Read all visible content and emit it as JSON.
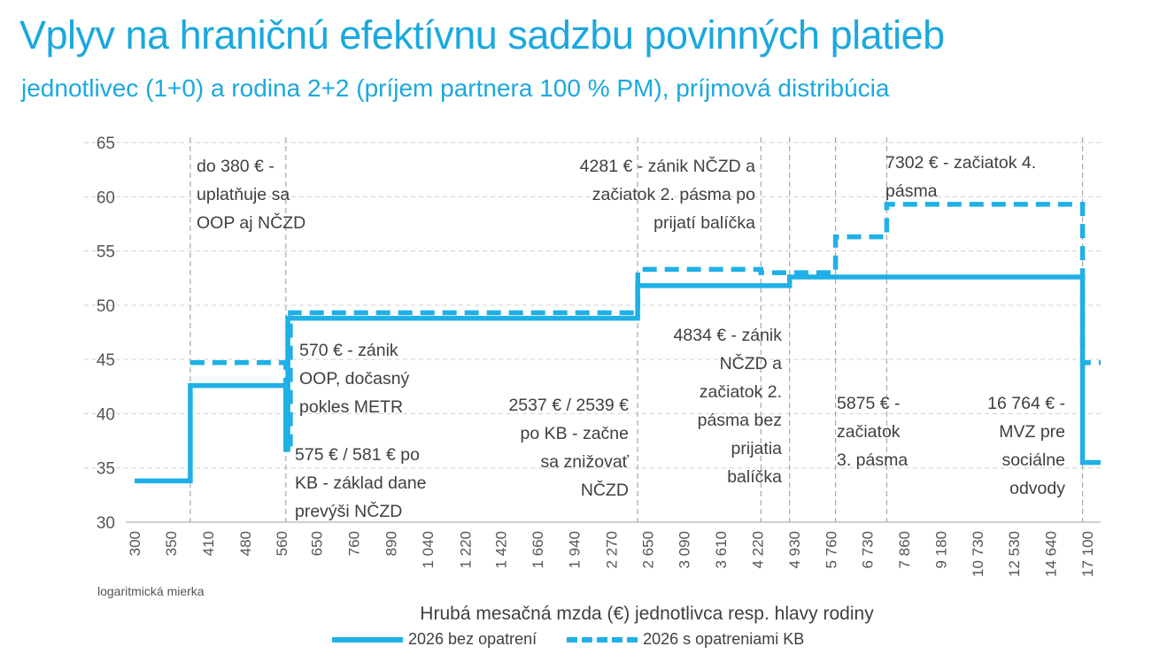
{
  "title": "Vplyv na hraničnú efektívnu sadzbu povinných platieb",
  "subtitle": "jednotlivec (1+0) a rodina 2+2 (príjem partnera 100 % PM), príjmová distribúcia",
  "note": "logaritmická mierka",
  "colors": {
    "series": "#1eb0e6",
    "title": "#1ba8dd",
    "text": "#404040",
    "grid": "#c8c8c8"
  },
  "chart_data": {
    "type": "line",
    "step": true,
    "title": "Vplyv na hraničnú efektívnu sadzbu povinných platieb",
    "subtitle": "jednotlivec (1+0) a rodina 2+2 (príjem partnera 100 % PM), príjmová distribúcia",
    "xlabel": "Hrubá mesačná mzda (€) jednotlivca resp. hlavy rodiny",
    "ylabel": "",
    "x_scale": "log",
    "xlim": [
      300,
      18100
    ],
    "ylim": [
      30,
      65
    ],
    "y_ticks": [
      30,
      35,
      40,
      45,
      50,
      55,
      60,
      65
    ],
    "x_tick_labels": [
      "300",
      "350",
      "410",
      "480",
      "560",
      "650",
      "760",
      "890",
      "1 040",
      "1 220",
      "1 420",
      "1 660",
      "1 940",
      "2 270",
      "2 650",
      "3 090",
      "3 610",
      "4 220",
      "4 930",
      "5 760",
      "6 730",
      "7 860",
      "9 180",
      "10 730",
      "12 530",
      "14 640",
      "17 100"
    ],
    "x_tick_values": [
      300,
      350,
      410,
      480,
      560,
      650,
      760,
      890,
      1040,
      1220,
      1420,
      1660,
      1940,
      2270,
      2650,
      3090,
      3610,
      4220,
      4930,
      5760,
      6730,
      7860,
      9180,
      10730,
      12530,
      14640,
      17100
    ],
    "grid": true,
    "legend_position": "bottom",
    "series": [
      {
        "name": "2026 bez opatrení",
        "style": "solid",
        "points": [
          [
            300,
            33.8
          ],
          [
            380,
            33.8
          ],
          [
            380,
            42.6
          ],
          [
            570,
            42.6
          ],
          [
            570,
            36.7
          ],
          [
            575,
            36.7
          ],
          [
            575,
            48.8
          ],
          [
            2537,
            48.8
          ],
          [
            2537,
            51.8
          ],
          [
            4834,
            51.8
          ],
          [
            4834,
            52.6
          ],
          [
            16764,
            52.6
          ],
          [
            16764,
            35.5
          ],
          [
            18100,
            35.5
          ]
        ]
      },
      {
        "name": "2026 s opatreniami KB",
        "style": "dashed",
        "points": [
          [
            380,
            44.7
          ],
          [
            570,
            44.7
          ],
          [
            570,
            37.2
          ],
          [
            581,
            37.2
          ],
          [
            581,
            49.3
          ],
          [
            2539,
            49.3
          ],
          [
            2539,
            53.3
          ],
          [
            4281,
            53.3
          ],
          [
            4281,
            53.0
          ],
          [
            5875,
            53.0
          ],
          [
            5875,
            56.3
          ],
          [
            7302,
            56.3
          ],
          [
            7302,
            59.3
          ],
          [
            16764,
            59.3
          ],
          [
            16764,
            44.7
          ],
          [
            18100,
            44.7
          ]
        ]
      }
    ],
    "event_lines": [
      380,
      570,
      2537,
      4281,
      4834,
      5875,
      7302,
      16764
    ],
    "annotations": [
      {
        "lines": [
          "do 380 € -",
          "uplatňuje sa",
          "OOP aj NČZD"
        ]
      },
      {
        "lines": [
          "570 € - zánik",
          "OOP, dočasný",
          "pokles METR"
        ]
      },
      {
        "lines": [
          "575 € / 581 € po",
          "KB - základ dane",
          "prevýši NČZD"
        ]
      },
      {
        "lines": [
          "2537 € / 2539 €",
          "po KB - začne",
          "sa znižovať",
          "NČZD"
        ]
      },
      {
        "lines": [
          "4281 € - zánik NČZD a",
          "začiatok 2. pásma po",
          "prijatí balíčka"
        ]
      },
      {
        "lines": [
          "4834 € - zánik",
          "NČZD a",
          "začiatok 2.",
          "pásma bez",
          "prijatia",
          "balíčka"
        ]
      },
      {
        "lines": [
          "5875 € -",
          "začiatok",
          "3. pásma"
        ]
      },
      {
        "lines": [
          "7302 € - začiatok 4.",
          "pásma"
        ]
      },
      {
        "lines": [
          "16 764 € -",
          "MVZ pre",
          "sociálne",
          "odvody"
        ]
      }
    ]
  }
}
